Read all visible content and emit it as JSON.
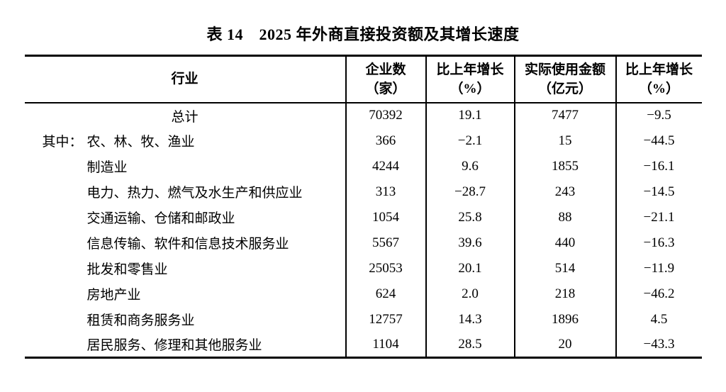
{
  "title": "表 14　2025 年外商直接投资额及其增长速度",
  "colors": {
    "text": "#000000",
    "background": "#ffffff",
    "border": "#000000"
  },
  "table": {
    "headers": [
      {
        "line1": "行业",
        "line2": ""
      },
      {
        "line1": "企业数",
        "line2": "（家）"
      },
      {
        "line1": "比上年增长",
        "line2": "（%）"
      },
      {
        "line1": "实际使用金额",
        "line2": "（亿元）"
      },
      {
        "line1": "比上年增长",
        "line2": "（%）"
      }
    ],
    "rows": [
      {
        "prefix": "",
        "industry": "总计",
        "align": "center",
        "values": [
          "70392",
          "19.1",
          "7477",
          "−9.5"
        ]
      },
      {
        "prefix": "其中：",
        "industry": "农、林、牧、渔业",
        "align": "indent",
        "values": [
          "366",
          "−2.1",
          "15",
          "−44.5"
        ]
      },
      {
        "prefix": "",
        "industry": "制造业",
        "align": "indent",
        "values": [
          "4244",
          "9.6",
          "1855",
          "−16.1"
        ]
      },
      {
        "prefix": "",
        "industry": "电力、热力、燃气及水生产和供应业",
        "align": "indent",
        "values": [
          "313",
          "−28.7",
          "243",
          "−14.5"
        ]
      },
      {
        "prefix": "",
        "industry": "交通运输、仓储和邮政业",
        "align": "indent",
        "values": [
          "1054",
          "25.8",
          "88",
          "−21.1"
        ]
      },
      {
        "prefix": "",
        "industry": "信息传输、软件和信息技术服务业",
        "align": "indent",
        "values": [
          "5567",
          "39.6",
          "440",
          "−16.3"
        ]
      },
      {
        "prefix": "",
        "industry": "批发和零售业",
        "align": "indent",
        "values": [
          "25053",
          "20.1",
          "514",
          "−11.9"
        ]
      },
      {
        "prefix": "",
        "industry": "房地产业",
        "align": "indent",
        "values": [
          "624",
          "2.0",
          "218",
          "−46.2"
        ]
      },
      {
        "prefix": "",
        "industry": "租赁和商务服务业",
        "align": "indent",
        "values": [
          "12757",
          "14.3",
          "1896",
          "4.5"
        ]
      },
      {
        "prefix": "",
        "industry": "居民服务、修理和其他服务业",
        "align": "indent",
        "values": [
          "1104",
          "28.5",
          "20",
          "−43.3"
        ]
      }
    ]
  }
}
